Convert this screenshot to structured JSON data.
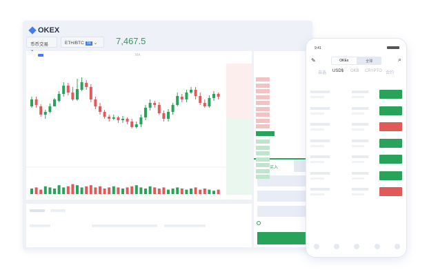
{
  "app": {
    "title": "OKEX"
  },
  "header": {
    "market_select": "币币交易",
    "pair": "ETH/BTC",
    "leverage": "3X",
    "last_price": "7,467.5"
  },
  "toolbar": {
    "indicator": "MA"
  },
  "order": {
    "buy_tab": "买入"
  },
  "colors": {
    "up": "#2aa35a",
    "down": "#e05a5a",
    "accent": "#3f7cf5"
  },
  "candles": [
    [
      160,
      150,
      146,
      162
    ],
    [
      150,
      158,
      146,
      162
    ],
    [
      160,
      172,
      157,
      175
    ],
    [
      172,
      168,
      165,
      178
    ],
    [
      168,
      160,
      156,
      170
    ],
    [
      160,
      150,
      148,
      160
    ],
    [
      152,
      142,
      138,
      154
    ],
    [
      142,
      130,
      125,
      146
    ],
    [
      130,
      140,
      126,
      144
    ],
    [
      140,
      150,
      132,
      152
    ],
    [
      150,
      135,
      120,
      152
    ],
    [
      136,
      125,
      118,
      138
    ],
    [
      126,
      132,
      122,
      136
    ],
    [
      132,
      150,
      128,
      154
    ],
    [
      150,
      160,
      146,
      164
    ],
    [
      160,
      168,
      155,
      172
    ],
    [
      168,
      175,
      165,
      178
    ],
    [
      175,
      178,
      172,
      182
    ],
    [
      178,
      176,
      172,
      180
    ],
    [
      176,
      180,
      174,
      184
    ],
    [
      180,
      178,
      174,
      184
    ],
    [
      178,
      182,
      176,
      186
    ],
    [
      182,
      190,
      178,
      192
    ],
    [
      190,
      186,
      182,
      192
    ],
    [
      186,
      176,
      172,
      190
    ],
    [
      176,
      162,
      158,
      180
    ],
    [
      162,
      155,
      150,
      166
    ],
    [
      155,
      158,
      152,
      162
    ],
    [
      158,
      170,
      154,
      172
    ],
    [
      170,
      178,
      166,
      182
    ],
    [
      178,
      168,
      164,
      182
    ],
    [
      168,
      158,
      155,
      172
    ],
    [
      158,
      145,
      140,
      160
    ],
    [
      146,
      150,
      142,
      154
    ],
    [
      150,
      140,
      136,
      154
    ],
    [
      140,
      136,
      132,
      142
    ],
    [
      136,
      145,
      132,
      150
    ],
    [
      145,
      155,
      140,
      158
    ],
    [
      155,
      160,
      150,
      162
    ],
    [
      160,
      148,
      144,
      162
    ],
    [
      148,
      142,
      138,
      152
    ],
    [
      142,
      146,
      140,
      150
    ]
  ],
  "volumes": [
    5,
    6,
    4,
    7,
    6,
    5,
    8,
    6,
    7,
    9,
    8,
    6,
    7,
    8,
    6,
    7,
    5,
    6,
    7,
    6,
    5,
    6,
    7,
    8,
    6,
    5,
    7,
    6,
    5,
    6,
    4,
    5,
    6,
    5,
    4,
    5,
    6,
    4,
    5,
    4,
    3,
    4
  ],
  "phone": {
    "time": "9:41",
    "segment": [
      "OKEx",
      "全球"
    ],
    "tabs": [
      "自选",
      "USD$",
      "OKB",
      "CRYPTO",
      "合约"
    ],
    "row_trend": [
      "up",
      "up",
      "down",
      "up",
      "up",
      "up",
      "down"
    ]
  }
}
